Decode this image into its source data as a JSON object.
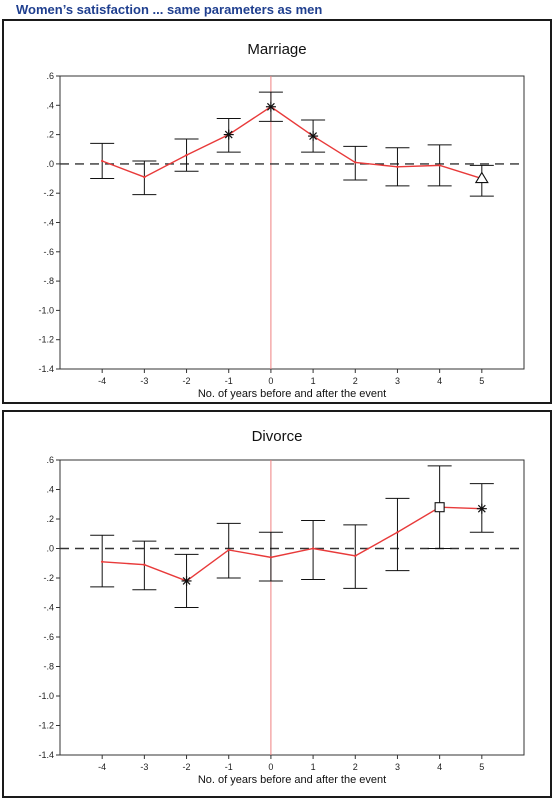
{
  "heading": "Women’s satisfaction ... same parameters as men",
  "chart_data": [
    {
      "type": "line",
      "title": "Marriage",
      "xlabel": "No. of years before and after the event",
      "ylabel": "",
      "x": [
        -4,
        -3,
        -2,
        -1,
        0,
        1,
        2,
        3,
        4,
        5
      ],
      "xticklabels": [
        "-4",
        "-3",
        "-2",
        "-1",
        "0",
        "1",
        "2",
        "3",
        "4",
        "5"
      ],
      "ylim": [
        -1.4,
        0.6
      ],
      "yticks": [
        0.6,
        0.4,
        0.2,
        0.0,
        -0.2,
        -0.4,
        -0.6,
        -0.8,
        -1.0,
        -1.2,
        -1.4
      ],
      "yticklabels": [
        ".6",
        ".4",
        ".2",
        ".0",
        "-.2",
        "-.4",
        "-.6",
        "-.8",
        "-1.0",
        "-1.2",
        "-1.4"
      ],
      "values": [
        0.02,
        -0.09,
        0.06,
        0.2,
        0.39,
        0.19,
        0.01,
        -0.02,
        -0.01,
        -0.1
      ],
      "lower": [
        -0.1,
        -0.21,
        -0.05,
        0.08,
        0.29,
        0.08,
        -0.11,
        -0.15,
        -0.15,
        -0.22
      ],
      "upper": [
        0.14,
        0.02,
        0.17,
        0.31,
        0.49,
        0.3,
        0.12,
        0.11,
        0.13,
        -0.01
      ],
      "markers": [
        "none",
        "none",
        "none",
        "star",
        "star",
        "star",
        "none",
        "none",
        "none",
        "triangle"
      ],
      "reference_line_x": 0,
      "reference_line_y": 0,
      "grid": false,
      "line_color": "#e83a3a",
      "vline_color": "#f08080"
    },
    {
      "type": "line",
      "title": "Divorce",
      "xlabel": "No. of years before and after the event",
      "ylabel": "",
      "x": [
        -4,
        -3,
        -2,
        -1,
        0,
        1,
        2,
        3,
        4,
        5
      ],
      "xticklabels": [
        "-4",
        "-3",
        "-2",
        "-1",
        "0",
        "1",
        "2",
        "3",
        "4",
        "5"
      ],
      "ylim": [
        -1.4,
        0.6
      ],
      "yticks": [
        0.6,
        0.4,
        0.2,
        0.0,
        -0.2,
        -0.4,
        -0.6,
        -0.8,
        -1.0,
        -1.2,
        -1.4
      ],
      "yticklabels": [
        ".6",
        ".4",
        ".2",
        ".0",
        "-.2",
        "-.4",
        "-.6",
        "-.8",
        "-1.0",
        "-1.2",
        "-1.4"
      ],
      "values": [
        -0.09,
        -0.11,
        -0.22,
        -0.01,
        -0.06,
        0.0,
        -0.05,
        0.11,
        0.28,
        0.27
      ],
      "lower": [
        -0.26,
        -0.28,
        -0.4,
        -0.2,
        -0.22,
        -0.21,
        -0.27,
        -0.15,
        0.0,
        0.11
      ],
      "upper": [
        0.09,
        0.05,
        -0.04,
        0.17,
        0.11,
        0.19,
        0.16,
        0.34,
        0.56,
        0.44
      ],
      "markers": [
        "none",
        "none",
        "star",
        "none",
        "none",
        "none",
        "none",
        "none",
        "square",
        "star"
      ],
      "reference_line_x": 0,
      "reference_line_y": 0,
      "grid": false,
      "line_color": "#e83a3a",
      "vline_color": "#f08080"
    }
  ]
}
